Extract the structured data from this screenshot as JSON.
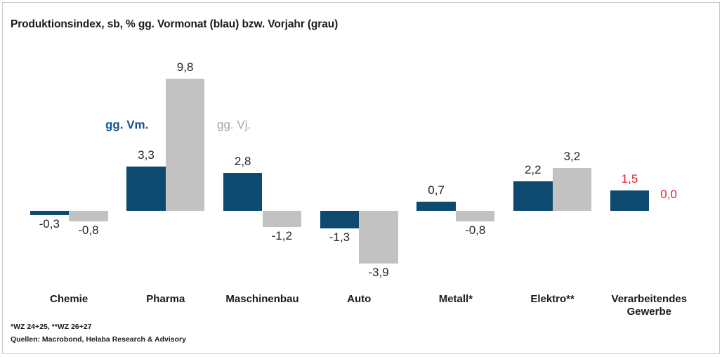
{
  "title": "Produktionsindex, sb, % gg. Vormonat (blau) bzw. Vorjahr (grau)",
  "legend": {
    "vm_label": "gg. Vm.",
    "vj_label": "gg. Vj."
  },
  "footnotes": [
    "*WZ 24+25, **WZ 26+27",
    "Quellen: Macrobond, Helaba Research & Advisory"
  ],
  "colors": {
    "vm_bar": "#0e4a70",
    "vj_bar": "#c2c2c2",
    "vm_legend_text": "#17568f",
    "vj_legend_text": "#a5a5a5",
    "value_text": "#262626",
    "highlight_text": "#ed1c24",
    "frame_border": "#c9c9c9"
  },
  "chart_data": {
    "type": "bar",
    "title": "Produktionsindex, sb, % gg. Vormonat (blau) bzw. Vorjahr (grau)",
    "categories": [
      "Chemie",
      "Pharma",
      "Maschinenbau",
      "Auto",
      "Metall*",
      "Elektro**",
      "Verarbeitendes Gewerbe"
    ],
    "series": [
      {
        "name": "gg. Vm.",
        "color_key": "vm_bar",
        "values": [
          -0.3,
          3.3,
          2.8,
          -1.3,
          0.7,
          2.2,
          1.5
        ],
        "labels": [
          "-0,3",
          "3,3",
          "2,8",
          "-1,3",
          "0,7",
          "2,2",
          "1,5"
        ]
      },
      {
        "name": "gg. Vj.",
        "color_key": "vj_bar",
        "values": [
          -0.8,
          9.8,
          -1.2,
          -3.9,
          -0.8,
          3.2,
          0.0
        ],
        "labels": [
          "-0,8",
          "9,8",
          "-1,2",
          "-3,9",
          "-0,8",
          "3,2",
          "0,0"
        ]
      }
    ],
    "highlight_category_index": 6,
    "xlabel": "",
    "ylabel": "",
    "ylim": [
      -5,
      11
    ],
    "grid": false,
    "axes_hidden": true,
    "legend_position": "floating above Pharma (vm) and Maschinenbau (vj) bars"
  }
}
